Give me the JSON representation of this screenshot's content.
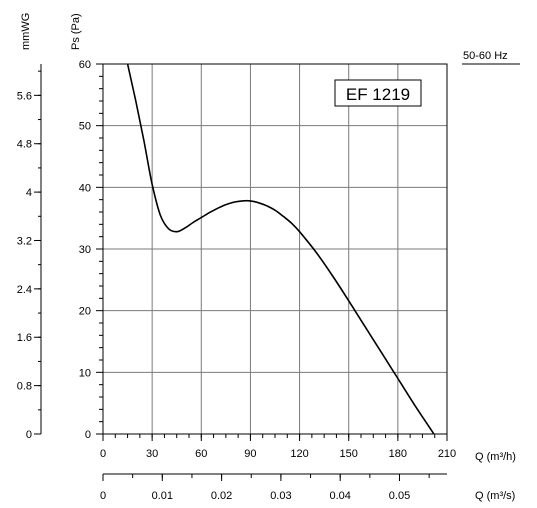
{
  "chart_data": {
    "type": "line",
    "title": "EF 1219",
    "frequency_label": "50-60 Hz",
    "grid": true,
    "x_primary": {
      "label": "Q (m³/h)",
      "range": [
        0,
        210
      ],
      "ticks": [
        0,
        30,
        60,
        90,
        120,
        150,
        180,
        210
      ],
      "tick_labels": [
        "0",
        "30",
        "60",
        "90",
        "120",
        "150",
        "180",
        "210"
      ],
      "minor_step": 7.5
    },
    "x_secondary": {
      "label": "Q (m³/s)",
      "ticks": [
        0,
        0.01,
        0.02,
        0.03,
        0.04,
        0.05
      ],
      "tick_labels": [
        "0",
        "0.01",
        "0.02",
        "0.03",
        "0.04",
        "0.05"
      ],
      "minor_step": 0.005
    },
    "y_primary": {
      "label": "Ps (Pa)",
      "range": [
        0,
        60
      ],
      "ticks": [
        0,
        10,
        20,
        30,
        40,
        50,
        60
      ],
      "tick_labels": [
        "0",
        "10",
        "20",
        "30",
        "40",
        "50",
        "60"
      ],
      "minor_step": 2
    },
    "y_secondary": {
      "label": "mmWG",
      "ticks": [
        0,
        0.8,
        1.6,
        2.4,
        3.2,
        4,
        4.8,
        5.6
      ],
      "tick_labels": [
        "0",
        "0.8",
        "1.6",
        "2.4",
        "3.2",
        "4",
        "4.8",
        "5.6"
      ],
      "minor_step": 0.4
    },
    "series": [
      {
        "x": [
          15,
          20,
          25,
          30,
          35,
          40,
          45,
          50,
          55,
          60,
          65,
          70,
          75,
          80,
          85,
          90,
          95,
          100,
          105,
          110,
          115,
          120,
          130,
          140,
          150,
          160,
          170,
          180,
          190,
          200,
          202
        ],
        "y": [
          60,
          54,
          47.5,
          40.5,
          35.5,
          33.3,
          32.8,
          33.4,
          34.3,
          35.1,
          35.9,
          36.6,
          37.2,
          37.6,
          37.8,
          37.8,
          37.5,
          37.0,
          36.3,
          35.3,
          34.2,
          32.8,
          29.5,
          25.7,
          21.6,
          17.4,
          13.2,
          9.0,
          4.8,
          0.8,
          0
        ]
      }
    ]
  }
}
